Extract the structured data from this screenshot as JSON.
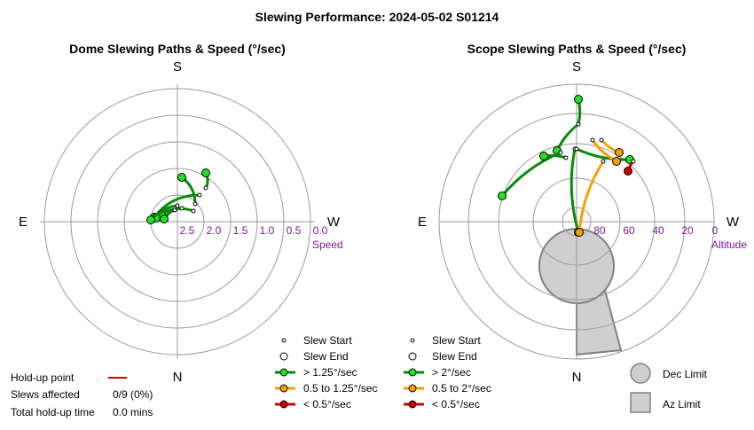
{
  "title": "Slewing Performance: 2024-05-02 S01214",
  "colors": {
    "fast": "#0a8a0a",
    "fast_node": "#22e022",
    "medium": "#f5a000",
    "slow": "#cc0000",
    "limit_fill": "#cfcfcf",
    "limit_edge": "#808080",
    "ring": "#9a9a9a",
    "scale_label": "#7a1a8f"
  },
  "chart_data": [
    {
      "type": "polar-scatter-line",
      "title": "Dome Slewing Paths & Speed (°/sec)",
      "compass": {
        "top": "S",
        "bottom": "N",
        "left": "E",
        "right": "W"
      },
      "radial_label": "Speed",
      "radial_ticks": [
        "2.5",
        "2.0",
        "1.5",
        "1.0",
        "0.5",
        "0.0"
      ],
      "legend": {
        "start": "Slew Start",
        "end": "Slew End",
        "fast": "> 1.25°/sec",
        "medium": "0.5 to 1.25°/sec",
        "slow": "< 0.5°/sec"
      },
      "slews": [
        {
          "start_x": 32,
          "start_y": -38,
          "end_x": 32,
          "end_y": -55,
          "band": "fast"
        },
        {
          "start_x": 20,
          "start_y": -20,
          "end_x": 5,
          "end_y": -50,
          "band": "fast"
        },
        {
          "start_x": 25,
          "start_y": -30,
          "end_x": -26,
          "end_y": -5,
          "band": "fast"
        },
        {
          "start_x": 18,
          "start_y": -12,
          "end_x": -18,
          "end_y": -8,
          "band": "fast"
        },
        {
          "start_x": 5,
          "start_y": -15,
          "end_x": -15,
          "end_y": -3,
          "band": "fast"
        },
        {
          "start_x": 0,
          "start_y": -18,
          "end_x": -24,
          "end_y": -4,
          "band": "fast"
        },
        {
          "start_x": -3,
          "start_y": -13,
          "end_x": -30,
          "end_y": -2,
          "band": "fast"
        }
      ]
    },
    {
      "type": "polar-scatter-line",
      "title": "Scope Slewing Paths & Speed (°/sec)",
      "compass": {
        "top": "S",
        "bottom": "N",
        "left": "E",
        "right": "W"
      },
      "radial_label": "Altitude",
      "radial_ticks": [
        "80",
        "60",
        "40",
        "20",
        "0"
      ],
      "legend": {
        "start": "Slew Start",
        "end": "Slew End",
        "fast": "> 2°/sec",
        "medium": "0.5 to 2°/sec",
        "slow": "< 0.5°/sec",
        "dec_limit": "Dec Limit",
        "az_limit": "Az Limit"
      },
      "slews": [
        {
          "start_x": 2,
          "start_y": -110,
          "end_x": 2,
          "end_y": -138,
          "band": "fast"
        },
        {
          "start_x": 2,
          "start_y": -110,
          "end_x": -22,
          "end_y": -80,
          "band": "fast"
        },
        {
          "start_x": -18,
          "start_y": -78,
          "end_x": -84,
          "end_y": -29,
          "band": "fast"
        },
        {
          "start_x": -12,
          "start_y": -72,
          "end_x": -37,
          "end_y": -74,
          "band": "fast"
        },
        {
          "start_x": -2,
          "start_y": -82,
          "end_x": 2,
          "end_y": 12,
          "band": "fast"
        },
        {
          "start_x": 0,
          "start_y": -82,
          "end_x": 60,
          "end_y": -70,
          "band": "fast"
        },
        {
          "start_x": 18,
          "start_y": -92,
          "end_x": 45,
          "end_y": -68,
          "band": "medium"
        },
        {
          "start_x": 28,
          "start_y": -92,
          "end_x": 48,
          "end_y": -78,
          "band": "medium"
        },
        {
          "start_x": 30,
          "start_y": -68,
          "end_x": 3,
          "end_y": 12,
          "band": "medium"
        },
        {
          "start_x": 64,
          "start_y": -68,
          "end_x": 58,
          "end_y": -57,
          "band": "slow"
        }
      ]
    }
  ],
  "summary": {
    "holdup_label": "Hold-up point",
    "affected_label": "Slews affected",
    "affected_value": "0/9 (0%)",
    "total_label": "Total hold-up time",
    "total_value": "0.0 mins"
  }
}
